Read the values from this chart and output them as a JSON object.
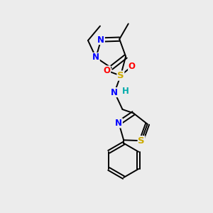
{
  "background_color": "#ececec",
  "bond_color": "#000000",
  "atom_colors": {
    "N": "#0000ff",
    "S": "#ccaa00",
    "O": "#ff0000",
    "H": "#00aaaa",
    "C": "#000000"
  },
  "font_size": 8.5,
  "line_width": 1.4,
  "figsize": [
    3.0,
    3.0
  ],
  "dpi": 100
}
